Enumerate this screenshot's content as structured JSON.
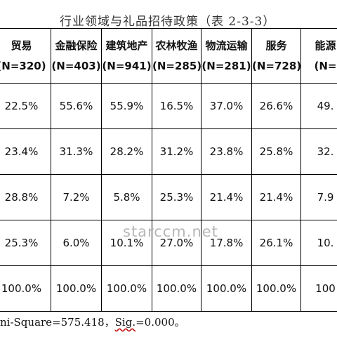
{
  "title": "行业领域与礼品招待政策（表 2-3-3）",
  "columns": [
    {
      "name": "贸易",
      "n": "(N=320)"
    },
    {
      "name": "金融保险",
      "n": "(N=403)"
    },
    {
      "name": "建筑地产",
      "n": "(N=941)"
    },
    {
      "name": "农林牧渔",
      "n": "(N=285)"
    },
    {
      "name": "物流运输",
      "n": "(N=281)"
    },
    {
      "name": "服务",
      "n": "(N=728)"
    },
    {
      "name": "能源",
      "n": "(N="
    }
  ],
  "rows": [
    [
      "22.5%",
      "55.6%",
      "55.9%",
      "16.5%",
      "37.0%",
      "26.6%",
      "49."
    ],
    [
      "23.4%",
      "31.3%",
      "28.2%",
      "31.2%",
      "23.8%",
      "25.8%",
      "32."
    ],
    [
      "28.8%",
      "7.2%",
      "5.8%",
      "25.3%",
      "21.4%",
      "21.4%",
      "7.9"
    ],
    [
      "25.3%",
      "6.0%",
      "10.1%",
      "27.0%",
      "17.8%",
      "26.1%",
      "10."
    ],
    [
      "100.0%",
      "100.0%",
      "100.0%",
      "100.0%",
      "100.0%",
      "100.0%",
      "100"
    ]
  ],
  "footer": {
    "prefix": "ni-Square=575.418，",
    "sig": "Sig.",
    "suffix": "=0.000。"
  },
  "watermark": "starccm.net"
}
